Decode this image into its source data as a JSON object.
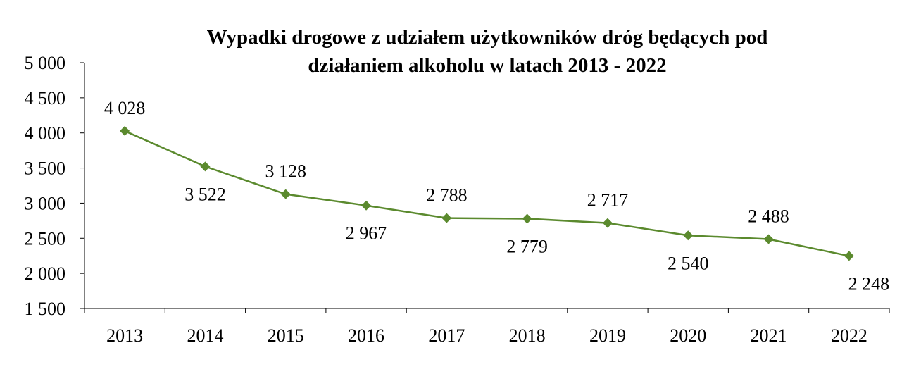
{
  "chart_data": {
    "type": "line",
    "title": "Wypadki drogowe z udziałem użytkowników dróg będących pod działaniem alkoholu w latach 2013 - 2022",
    "title_lines": [
      "Wypadki drogowe z udziałem użytkowników dróg będących pod",
      "działaniem alkoholu w latach 2013 - 2022"
    ],
    "categories": [
      "2013",
      "2014",
      "2015",
      "2016",
      "2017",
      "2018",
      "2019",
      "2020",
      "2021",
      "2022"
    ],
    "values": [
      4028,
      3522,
      3128,
      2967,
      2788,
      2779,
      2717,
      2540,
      2488,
      2248
    ],
    "data_labels": [
      "4 028",
      "3 522",
      "3 128",
      "2 967",
      "2 788",
      "2 779",
      "2 717",
      "2 540",
      "2 488",
      "2 248"
    ],
    "label_positions": [
      "above",
      "below",
      "above",
      "below",
      "above",
      "below",
      "above",
      "below",
      "above",
      "below"
    ],
    "ylim": [
      1500,
      5000
    ],
    "yticks": [
      1500,
      2000,
      2500,
      3000,
      3500,
      4000,
      4500,
      5000
    ],
    "ytick_labels": [
      "1 500",
      "2 000",
      "2 500",
      "3 000",
      "3 500",
      "4 000",
      "4 500",
      "5 000"
    ],
    "xlabel": "",
    "ylabel": "",
    "grid": false,
    "legend": "none",
    "line_color": "#5b8a2e",
    "marker": "diamond"
  }
}
